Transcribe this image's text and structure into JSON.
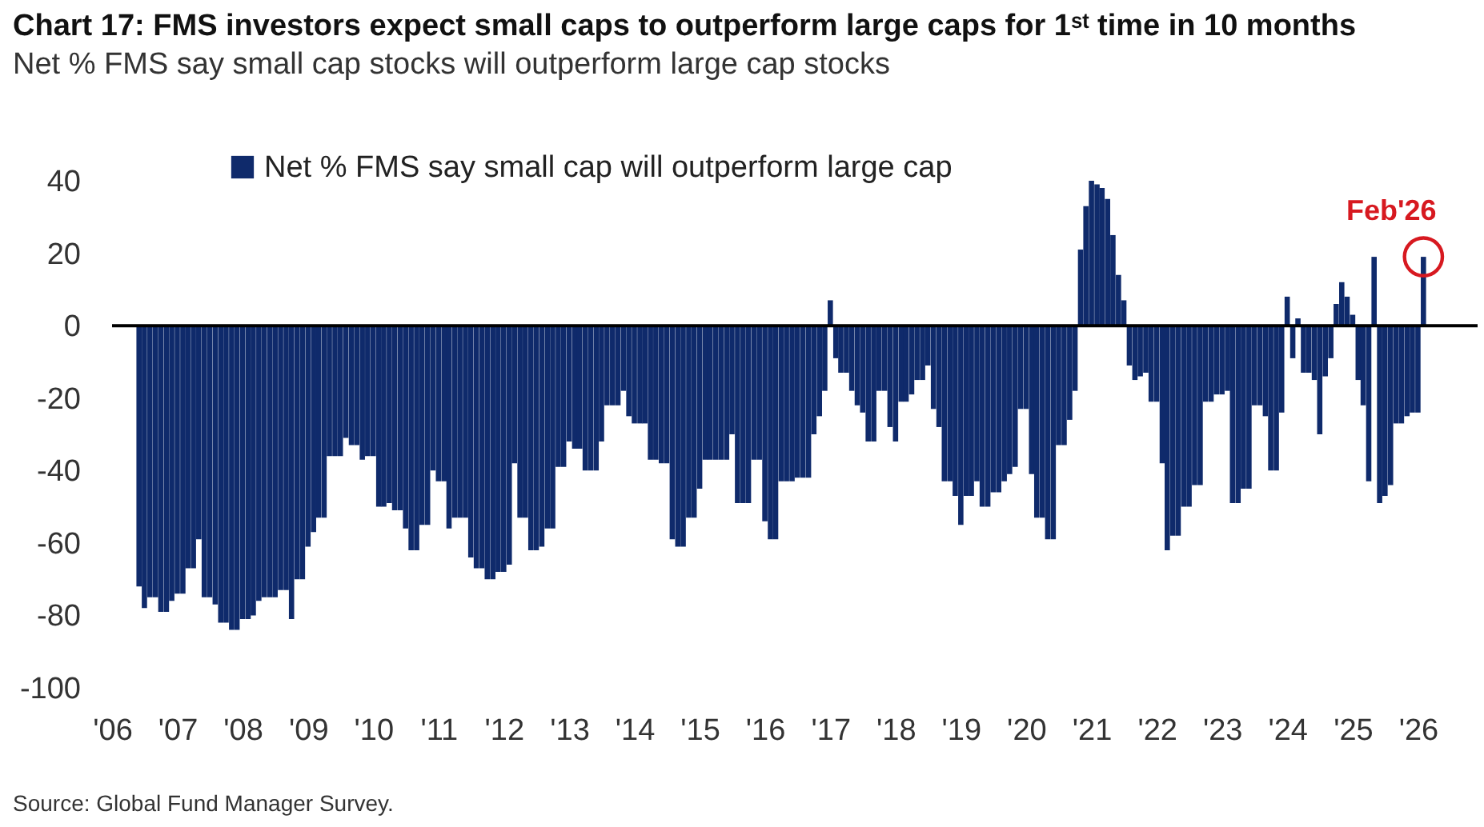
{
  "chart_data": {
    "type": "bar",
    "title": "Chart 17: FMS investors expect small caps to outperform large caps for 1ˢᵗ time in 10 months",
    "subtitle": "Net % FMS say small cap stocks will outperform large cap stocks",
    "x": [
      "2006-06",
      "2006-07",
      "2006-08",
      "2006-09",
      "2006-10",
      "2006-11",
      "2006-12",
      "2007-01",
      "2007-02",
      "2007-03",
      "2007-04",
      "2007-05",
      "2007-06",
      "2007-07",
      "2007-08",
      "2007-09",
      "2007-10",
      "2007-11",
      "2007-12",
      "2008-01",
      "2008-02",
      "2008-03",
      "2008-04",
      "2008-05",
      "2008-06",
      "2008-07",
      "2008-08",
      "2008-09",
      "2008-10",
      "2008-11",
      "2008-12",
      "2009-01",
      "2009-02",
      "2009-03",
      "2009-04",
      "2009-05",
      "2009-06",
      "2009-07",
      "2009-08",
      "2009-09",
      "2009-10",
      "2009-11",
      "2009-12",
      "2010-01",
      "2010-02",
      "2010-03",
      "2010-04",
      "2010-05",
      "2010-06",
      "2010-07",
      "2010-08",
      "2010-09",
      "2010-10",
      "2010-11",
      "2010-12",
      "2011-01",
      "2011-02",
      "2011-03",
      "2011-04",
      "2011-05",
      "2011-06",
      "2011-07",
      "2011-08",
      "2011-09",
      "2011-10",
      "2011-11",
      "2011-12",
      "2012-01",
      "2012-02",
      "2012-03",
      "2012-04",
      "2012-05",
      "2012-06",
      "2012-07",
      "2012-08",
      "2012-09",
      "2012-10",
      "2012-11",
      "2012-12",
      "2013-01",
      "2013-02",
      "2013-03",
      "2013-04",
      "2013-05",
      "2013-06",
      "2013-07",
      "2013-08",
      "2013-09",
      "2013-10",
      "2013-11",
      "2013-12",
      "2014-01",
      "2014-02",
      "2014-03",
      "2014-04",
      "2014-05",
      "2014-06",
      "2014-07",
      "2014-08",
      "2014-09",
      "2014-10",
      "2014-11",
      "2014-12",
      "2015-01",
      "2015-02",
      "2015-03",
      "2015-04",
      "2015-05",
      "2015-06",
      "2015-07",
      "2015-08",
      "2015-09",
      "2015-10",
      "2015-11",
      "2015-12",
      "2016-01",
      "2016-02",
      "2016-03",
      "2016-04",
      "2016-05",
      "2016-06",
      "2016-07",
      "2016-08",
      "2016-09",
      "2016-10",
      "2016-11",
      "2016-12",
      "2017-01",
      "2017-02",
      "2017-03",
      "2017-04",
      "2017-05",
      "2017-06",
      "2017-07",
      "2017-08",
      "2017-09",
      "2017-10",
      "2017-11",
      "2017-12",
      "2018-01",
      "2018-02",
      "2018-03",
      "2018-04",
      "2018-05",
      "2018-06",
      "2018-07",
      "2018-08",
      "2018-09",
      "2018-10",
      "2018-11",
      "2018-12",
      "2019-01",
      "2019-02",
      "2019-03",
      "2019-04",
      "2019-05",
      "2019-06",
      "2019-07",
      "2019-08",
      "2019-09",
      "2019-10",
      "2019-11",
      "2019-12",
      "2020-01",
      "2020-02",
      "2020-03",
      "2020-04",
      "2020-05",
      "2020-06",
      "2020-07",
      "2020-08",
      "2020-09",
      "2020-10",
      "2020-11",
      "2020-12",
      "2021-01",
      "2021-02",
      "2021-03",
      "2021-04",
      "2021-05",
      "2021-06",
      "2021-07",
      "2021-08",
      "2021-09",
      "2021-10",
      "2021-11",
      "2021-12",
      "2022-01",
      "2022-02",
      "2022-03",
      "2022-04",
      "2022-05",
      "2022-06",
      "2022-07",
      "2022-08",
      "2022-09",
      "2022-10",
      "2022-11",
      "2022-12",
      "2023-01",
      "2023-02",
      "2023-03",
      "2023-04",
      "2023-05",
      "2023-06",
      "2023-07",
      "2023-08",
      "2023-09",
      "2023-10",
      "2023-11",
      "2023-12",
      "2024-01",
      "2024-02",
      "2024-03",
      "2024-04",
      "2024-05",
      "2024-06",
      "2024-07",
      "2024-08",
      "2024-09",
      "2024-10",
      "2024-11",
      "2024-12",
      "2025-01",
      "2025-02",
      "2025-03",
      "2025-04",
      "2025-05",
      "2025-06",
      "2025-07",
      "2025-08",
      "2025-09",
      "2025-10",
      "2025-11",
      "2025-12",
      "2026-01",
      "2026-02"
    ],
    "series": [
      {
        "name": "Net % FMS say small cap will outperform large cap",
        "color": "#0f2a6b",
        "values": [
          -72,
          -78,
          -75,
          -75,
          -79,
          -79,
          -76,
          -74,
          -74,
          -67,
          -67,
          -59,
          -75,
          -75,
          -77,
          -82,
          -82,
          -84,
          -84,
          -81,
          -81,
          -80,
          -76,
          -75,
          -75,
          -75,
          -73,
          -73,
          -81,
          -70,
          -70,
          -61,
          -57,
          -53,
          -53,
          -36,
          -36,
          -36,
          -31,
          -33,
          -33,
          -37,
          -36,
          -36,
          -50,
          -50,
          -49,
          -51,
          -51,
          -56,
          -62,
          -62,
          -55,
          -55,
          -40,
          -43,
          -43,
          -56,
          -53,
          -53,
          -53,
          -64,
          -67,
          -67,
          -70,
          -70,
          -68,
          -68,
          -66,
          -38,
          -53,
          -53,
          -62,
          -62,
          -61,
          -56,
          -56,
          -39,
          -39,
          -32,
          -34,
          -34,
          -40,
          -40,
          -40,
          -32,
          -22,
          -22,
          -22,
          -18,
          -25,
          -27,
          -27,
          -27,
          -37,
          -37,
          -38,
          -38,
          -59,
          -61,
          -61,
          -53,
          -53,
          -45,
          -37,
          -37,
          -37,
          -37,
          -37,
          -30,
          -49,
          -49,
          -49,
          -37,
          -37,
          -54,
          -59,
          -59,
          -43,
          -43,
          -43,
          -42,
          -42,
          -42,
          -30,
          -25,
          -18,
          7,
          -9,
          -13,
          -13,
          -18,
          -22,
          -24,
          -32,
          -32,
          -18,
          -18,
          -28,
          -32,
          -21,
          -21,
          -19,
          -15,
          -15,
          -11,
          -23,
          -28,
          -43,
          -43,
          -47,
          -55,
          -47,
          -47,
          -43,
          -50,
          -50,
          -46,
          -46,
          -43,
          -41,
          -39,
          -23,
          -23,
          -41,
          -53,
          -53,
          -59,
          -59,
          -33,
          -33,
          -26,
          -18,
          21,
          33,
          40,
          39,
          38,
          35,
          25,
          14,
          7,
          -11,
          -15,
          -14,
          -13,
          -21,
          -21,
          -38,
          -62,
          -58,
          -58,
          -50,
          -50,
          -44,
          -44,
          -21,
          -21,
          -19,
          -19,
          -18,
          -49,
          -49,
          -45,
          -45,
          -22,
          -22,
          -25,
          -40,
          -40,
          -24,
          8,
          -9,
          2,
          -13,
          -13,
          -15,
          -30,
          -14,
          -9,
          6,
          12,
          8,
          3,
          -15,
          -22,
          -43,
          19,
          -49,
          -47,
          -44,
          -27,
          -27,
          -25,
          -24,
          -24,
          19
        ]
      }
    ],
    "xlim": [
      "2006-01",
      "2026-12"
    ],
    "xticks": [
      {
        "value": "2006-01",
        "label": "'06"
      },
      {
        "value": "2007-01",
        "label": "'07"
      },
      {
        "value": "2008-01",
        "label": "'08"
      },
      {
        "value": "2009-01",
        "label": "'09"
      },
      {
        "value": "2010-01",
        "label": "'10"
      },
      {
        "value": "2011-01",
        "label": "'11"
      },
      {
        "value": "2012-01",
        "label": "'12"
      },
      {
        "value": "2013-01",
        "label": "'13"
      },
      {
        "value": "2014-01",
        "label": "'14"
      },
      {
        "value": "2015-01",
        "label": "'15"
      },
      {
        "value": "2016-01",
        "label": "'16"
      },
      {
        "value": "2017-01",
        "label": "'17"
      },
      {
        "value": "2018-01",
        "label": "'18"
      },
      {
        "value": "2019-01",
        "label": "'19"
      },
      {
        "value": "2020-01",
        "label": "'20"
      },
      {
        "value": "2021-01",
        "label": "'21"
      },
      {
        "value": "2022-01",
        "label": "'22"
      },
      {
        "value": "2023-01",
        "label": "'23"
      },
      {
        "value": "2024-01",
        "label": "'24"
      },
      {
        "value": "2025-01",
        "label": "'25"
      },
      {
        "value": "2026-01",
        "label": "'26"
      }
    ],
    "ylim": [
      -100,
      40
    ],
    "yticks": [
      -100,
      -80,
      -60,
      -40,
      -20,
      0,
      20,
      40
    ],
    "ref_lines": [
      {
        "axis": "y",
        "value": 0,
        "color": "#000000"
      }
    ],
    "annotations": [
      {
        "text": "Feb'26",
        "x": "2026-02",
        "y": 19
      },
      "Source: Global Fund Manager Survey."
    ],
    "legend": "top left",
    "grid": false
  }
}
